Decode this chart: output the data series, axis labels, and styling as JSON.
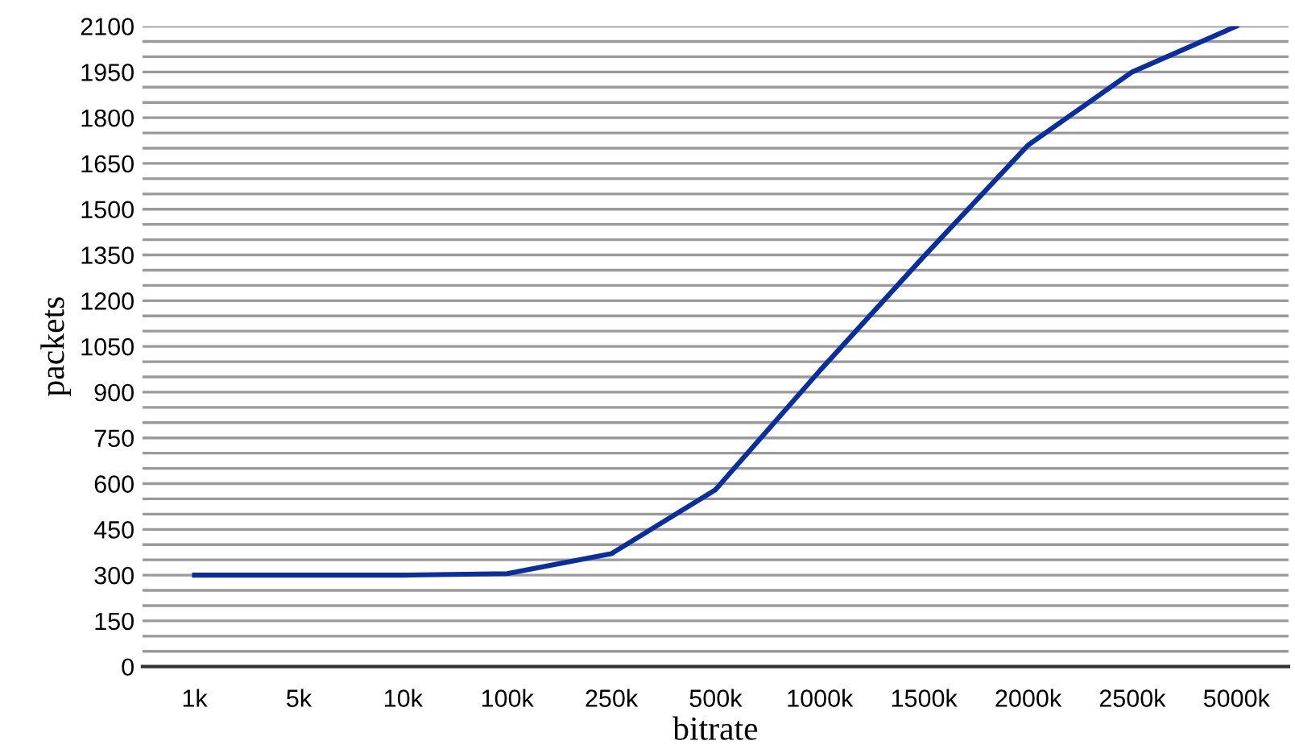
{
  "chart_data": {
    "type": "line",
    "xlabel": "bitrate",
    "ylabel": "packets",
    "categories": [
      "1k",
      "5k",
      "10k",
      "100k",
      "250k",
      "500k",
      "1000k",
      "1500k",
      "2000k",
      "2500k",
      "5000k"
    ],
    "series": [
      {
        "color": "#0a2e9e",
        "values": [
          300,
          300,
          300,
          305,
          370,
          580,
          970,
          1345,
          1710,
          1950,
          2100
        ]
      }
    ],
    "ylim": [
      0,
      2100
    ],
    "yticks": [
      0,
      {
        "value": 50,
        "label": null
      },
      {
        "value": 100,
        "label": null
      },
      150,
      {
        "value": 200,
        "label": null
      },
      {
        "value": 250,
        "label": null
      },
      300,
      {
        "value": 350,
        "label": null
      },
      {
        "value": 400,
        "label": null
      },
      450,
      {
        "value": 500,
        "label": null
      },
      {
        "value": 550,
        "label": null
      },
      600,
      {
        "value": 650,
        "label": null
      },
      {
        "value": 700,
        "label": null
      },
      750,
      {
        "value": 800,
        "label": null
      },
      {
        "value": 850,
        "label": null
      },
      900,
      {
        "value": 950,
        "label": null
      },
      {
        "value": 1000,
        "label": null
      },
      1050,
      {
        "value": 1100,
        "label": null
      },
      {
        "value": 1150,
        "label": null
      },
      1200,
      {
        "value": 1250,
        "label": null
      },
      {
        "value": 1300,
        "label": null
      },
      1350,
      {
        "value": 1400,
        "label": null
      },
      {
        "value": 1450,
        "label": null
      },
      1500,
      {
        "value": 1550,
        "label": null
      },
      {
        "value": 1600,
        "label": null
      },
      1650,
      {
        "value": 1700,
        "label": null
      },
      {
        "value": 1750,
        "label": null
      },
      1800,
      {
        "value": 1850,
        "label": null
      },
      {
        "value": 1900,
        "label": null
      },
      1950,
      {
        "value": 2000,
        "label": null
      },
      {
        "value": 2050,
        "label": null
      },
      2100
    ],
    "grid": "y",
    "legend": false,
    "marker": "none",
    "line_style": "solid"
  }
}
